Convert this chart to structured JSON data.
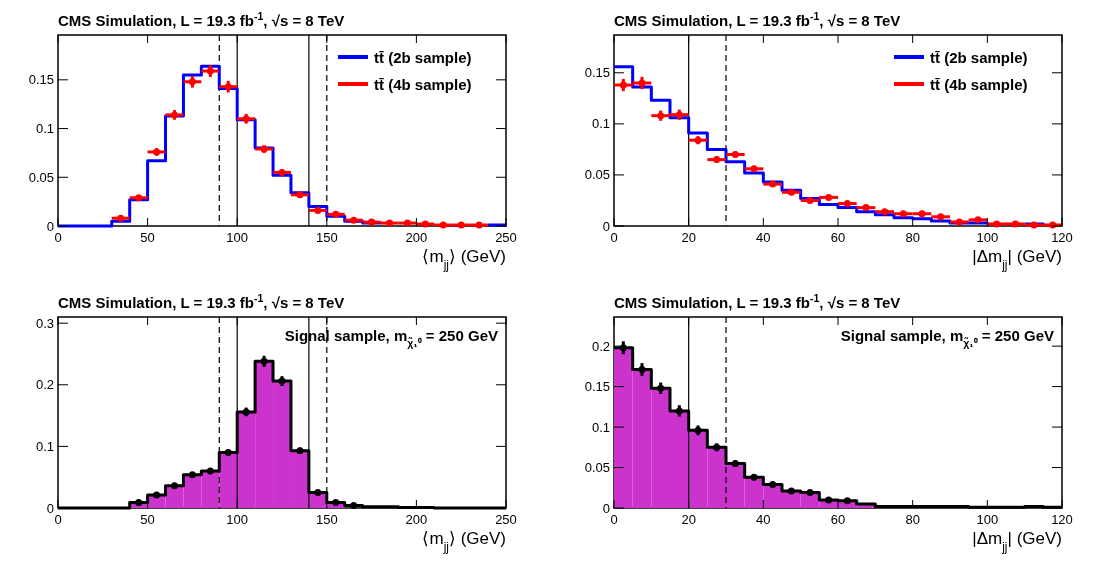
{
  "chart_data": [
    {
      "type": "step",
      "title": "CMS Simulation, L = 19.3 fb$^{-1}$, √s = 8 TeV",
      "xlabel": "⟨m$_{jj}$⟩ (GeV)",
      "xlim": [
        0,
        250
      ],
      "xticks": [
        0,
        50,
        100,
        150,
        200,
        250
      ],
      "ylim": [
        0,
        0.196
      ],
      "yticks": [
        0,
        0.05,
        0.1,
        0.15
      ],
      "legend": "top right",
      "series": [
        {
          "name": "tt̄ (2b sample)",
          "color": "#0000ff",
          "x": [
            0,
            10,
            20,
            30,
            40,
            50,
            60,
            70,
            80,
            90,
            100,
            110,
            120,
            130,
            140,
            150,
            160,
            170,
            180,
            190,
            200,
            210,
            220,
            230,
            240,
            250
          ],
          "values": [
            0,
            0,
            0,
            0.005,
            0.027,
            0.067,
            0.113,
            0.155,
            0.164,
            0.141,
            0.109,
            0.08,
            0.052,
            0.034,
            0.02,
            0.01,
            0.005,
            0.003,
            0.002,
            null,
            null,
            null,
            null,
            null,
            0.001,
            0.001
          ]
        },
        {
          "name": "tt̄ (4b sample)",
          "color": "#ff0000",
          "type": "scatter",
          "x": [
            35,
            45,
            55,
            65,
            75,
            85,
            95,
            105,
            115,
            125,
            135,
            145,
            155,
            165,
            175,
            185,
            195,
            205,
            215,
            225,
            235
          ],
          "values": [
            0.008,
            0.029,
            0.076,
            0.114,
            0.148,
            0.159,
            0.143,
            0.11,
            0.079,
            0.055,
            0.032,
            0.016,
            0.012,
            0.006,
            0.004,
            0.003,
            0.003,
            0.002,
            0.001,
            0.001,
            0.001
          ],
          "xerrors": [
            5,
            5,
            5,
            5,
            5,
            5,
            5,
            5,
            5,
            5,
            5,
            5,
            5,
            5,
            5,
            5,
            5,
            5,
            5,
            5,
            5
          ],
          "errors": [
            0.002,
            0.002,
            0.004,
            0.005,
            0.006,
            0.006,
            0.006,
            0.005,
            0.004,
            0.003,
            0.002,
            0.002,
            0.002,
            0.002,
            null,
            0.002,
            0.002,
            null,
            null,
            null,
            null
          ]
        }
      ],
      "ref_lines": [
        {
          "axis": "x",
          "value": 90,
          "line_style": "dashed",
          "color": "#000000"
        },
        {
          "axis": "x",
          "value": 100,
          "line_style": "solid",
          "color": "#000000"
        },
        {
          "axis": "x",
          "value": 140,
          "line_style": "solid",
          "color": "#000000"
        },
        {
          "axis": "x",
          "value": 150,
          "line_style": "dashed",
          "color": "#000000"
        }
      ]
    },
    {
      "type": "step",
      "title": "CMS Simulation, L = 19.3 fb$^{-1}$, √s = 8 TeV",
      "xlabel": "|Δm$_{jj}$| (GeV)",
      "xlim": [
        0,
        120
      ],
      "xticks": [
        0,
        20,
        40,
        60,
        80,
        100,
        120
      ],
      "ylim": [
        0,
        0.187
      ],
      "yticks": [
        0,
        0.05,
        0.1,
        0.15
      ],
      "legend": "top right",
      "series": [
        {
          "name": "tt̄ (2b sample)",
          "color": "#0000ff",
          "x": [
            0,
            5,
            10,
            15,
            20,
            25,
            30,
            35,
            40,
            45,
            50,
            55,
            60,
            65,
            70,
            75,
            80,
            85,
            90,
            95,
            100,
            105,
            110,
            115
          ],
          "values": [
            0.156,
            0.136,
            0.123,
            0.106,
            0.091,
            0.075,
            0.063,
            0.052,
            0.043,
            0.035,
            0.027,
            0.021,
            0.018,
            0.014,
            0.011,
            0.008,
            0.007,
            0.005,
            0.003,
            0.003,
            0.002,
            null,
            0.002,
            0.001
          ]
        },
        {
          "name": "tt̄ (4b sample)",
          "color": "#ff0000",
          "type": "scatter",
          "x": [
            2.5,
            7.5,
            12.5,
            17.5,
            22.5,
            27.5,
            32.5,
            37.5,
            42.5,
            47.5,
            52.5,
            57.5,
            62.5,
            67.5,
            72.5,
            77.5,
            82.5,
            87.5,
            92.5,
            97.5,
            102.5,
            107.5,
            112.5,
            117.5
          ],
          "values": [
            0.138,
            0.14,
            0.108,
            0.109,
            0.084,
            0.065,
            0.07,
            0.056,
            0.041,
            0.033,
            0.025,
            0.028,
            0.022,
            0.018,
            0.014,
            0.012,
            0.012,
            0.009,
            0.004,
            0.006,
            0.002,
            0.002,
            0.001,
            0.001
          ],
          "xerrors": [
            2.5,
            2.5,
            2.5,
            2.5,
            2.5,
            2.5,
            2.5,
            2.5,
            2.5,
            2.5,
            2.5,
            2.5,
            2.5,
            2.5,
            2.5,
            2.5,
            2.5,
            2.5,
            2.5,
            2.5,
            2.5,
            2.5,
            2.5,
            2.5
          ],
          "errors": [
            0.006,
            0.006,
            0.005,
            0.005,
            0.004,
            0.003,
            0.003,
            0.003,
            0.002,
            0.002,
            0.002,
            0.002,
            0.002,
            0.002,
            0.002,
            0.002,
            0.002,
            0.002,
            0.002,
            0.002,
            null,
            null,
            null,
            null
          ]
        }
      ],
      "ref_lines": [
        {
          "axis": "x",
          "value": 20,
          "line_style": "solid",
          "color": "#000000"
        },
        {
          "axis": "x",
          "value": 30,
          "line_style": "dashed",
          "color": "#000000"
        }
      ]
    },
    {
      "type": "histogram",
      "title": "CMS Simulation, L = 19.3 fb$^{-1}$, √s = 8 TeV",
      "xlabel": "⟨m$_{jj}$⟩ (GeV)",
      "annotations": [
        "Signal sample, m$_{χ̃₁⁰}$ = 250 GeV"
      ],
      "bins": [
        0,
        10,
        20,
        30,
        40,
        50,
        60,
        70,
        80,
        90,
        100,
        110,
        120,
        130,
        140,
        150,
        160,
        170,
        180,
        190,
        200,
        210,
        220,
        230,
        240,
        250
      ],
      "xlim": [
        0,
        250
      ],
      "xticks": [
        0,
        50,
        100,
        150,
        200,
        250
      ],
      "ylim": [
        0,
        0.31
      ],
      "yticks": [
        0,
        0.1,
        0.2,
        0.3
      ],
      "series": [
        {
          "color": "#cc33cc",
          "values": [
            0,
            0,
            0,
            0,
            0.009,
            0.021,
            0.036,
            0.054,
            0.06,
            0.09,
            0.156,
            0.238,
            0.206,
            0.093,
            0.025,
            0.009,
            null,
            0.002,
            0.002,
            0.001,
            0.001,
            0,
            0,
            0,
            0
          ]
        },
        {
          "color": "#000000",
          "type": "step",
          "x": [
            0,
            10,
            20,
            30,
            40,
            50,
            60,
            70,
            80,
            90,
            100,
            110,
            120,
            130,
            140,
            150,
            160,
            170,
            180,
            190,
            200,
            210,
            220,
            230,
            240,
            250
          ],
          "values": [
            0,
            0,
            0,
            0,
            0.009,
            0.021,
            0.036,
            0.054,
            0.06,
            0.09,
            0.156,
            0.238,
            0.206,
            0.093,
            0.025,
            0.009,
            0.004,
            0.002,
            0.002,
            0.001,
            0.001,
            0,
            0,
            0,
            0,
            0
          ]
        },
        {
          "color": "#000000",
          "type": "scatter",
          "x": [
            45,
            55,
            65,
            75,
            85,
            95,
            105,
            115,
            125,
            135,
            145,
            155,
            165
          ],
          "values": [
            0.009,
            0.021,
            0.036,
            0.054,
            0.06,
            0.09,
            0.156,
            0.238,
            0.206,
            0.093,
            0.025,
            0.009,
            0.004
          ],
          "errors": [
            0.003,
            0.003,
            0.003,
            0.004,
            0.004,
            0.005,
            0.007,
            0.009,
            0.008,
            0.005,
            0.003,
            0.003,
            null
          ]
        }
      ],
      "ref_lines": [
        {
          "axis": "x",
          "value": 90,
          "line_style": "dashed",
          "color": "#000000"
        },
        {
          "axis": "x",
          "value": 100,
          "line_style": "solid",
          "color": "#000000"
        },
        {
          "axis": "x",
          "value": 140,
          "line_style": "solid",
          "color": "#000000"
        },
        {
          "axis": "x",
          "value": 150,
          "line_style": "dashed",
          "color": "#000000"
        }
      ]
    },
    {
      "type": "histogram",
      "title": "CMS Simulation, L = 19.3 fb$^{-1}$, √s = 8 TeV",
      "xlabel": "|Δm$_{jj}$| (GeV)",
      "annotations": [
        "Signal sample, m$_{χ̃₁⁰}$ = 250 GeV"
      ],
      "bins": [
        0,
        5,
        10,
        15,
        20,
        25,
        30,
        35,
        40,
        45,
        50,
        55,
        60,
        65,
        70
      ],
      "xlim": [
        0,
        120
      ],
      "xticks": [
        0,
        20,
        40,
        60,
        80,
        100,
        120
      ],
      "ylim": [
        0,
        0.236
      ],
      "yticks": [
        0,
        0.05,
        0.1,
        0.15,
        0.2
      ],
      "series": [
        {
          "color": "#cc33cc",
          "values": [
            0.198,
            0.171,
            0.148,
            0.12,
            0.096,
            0.075,
            0.055,
            0.038,
            0.029,
            0.021,
            0.019,
            0.01,
            0.009,
            0.005
          ]
        },
        {
          "color": "#000000",
          "type": "step",
          "x": [
            0,
            5,
            10,
            15,
            20,
            25,
            30,
            35,
            40,
            45,
            50,
            55,
            60,
            65,
            70,
            75,
            80,
            85,
            90,
            95,
            100,
            105,
            110,
            115,
            120
          ],
          "values": [
            0.198,
            0.171,
            0.148,
            0.12,
            0.096,
            0.075,
            0.055,
            0.038,
            0.029,
            0.021,
            0.019,
            0.01,
            0.009,
            0.005,
            0.002,
            0.002,
            0.002,
            0.002,
            0.002,
            0.001,
            0.001,
            0.001,
            0.002,
            0.001,
            0.001
          ]
        },
        {
          "color": "#000000",
          "type": "scatter",
          "x": [
            2.5,
            7.5,
            12.5,
            17.5,
            22.5,
            27.5,
            32.5,
            37.5,
            42.5,
            47.5,
            52.5,
            57.5,
            62.5
          ],
          "values": [
            0.198,
            0.171,
            0.148,
            0.12,
            0.096,
            0.075,
            0.055,
            0.038,
            0.029,
            0.021,
            0.019,
            0.01,
            0.009
          ],
          "errors": [
            0.008,
            0.008,
            0.007,
            0.007,
            0.006,
            0.005,
            0.004,
            0.003,
            0.003,
            0.003,
            0.003,
            0.003,
            0.003
          ]
        }
      ],
      "ref_lines": [
        {
          "axis": "x",
          "value": 20,
          "line_style": "solid",
          "color": "#000000"
        },
        {
          "axis": "x",
          "value": 30,
          "line_style": "dashed",
          "color": "#000000"
        }
      ]
    }
  ]
}
